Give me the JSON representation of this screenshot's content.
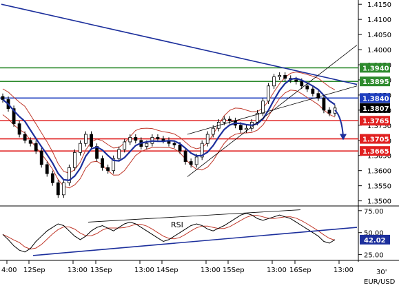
{
  "chart_data": [
    {
      "type": "candlestick",
      "instrument": "EUR/USD",
      "timeframe": "30'",
      "x_tick_labels": [
        "4:00",
        "12Sep",
        "13:00",
        "13Sep",
        "13:00",
        "14Sep",
        "13:00",
        "15Sep",
        "13:00",
        "16Sep",
        "13:00"
      ],
      "y_tick_labels": [
        "1.4150",
        "1.4100",
        "1.4050",
        "1.4000",
        "1.3950",
        "1.3900",
        "1.3850",
        "1.3800",
        "1.3750",
        "1.3700",
        "1.3650",
        "1.3600",
        "1.3550",
        "1.3500"
      ],
      "ylim": [
        1.349,
        1.4155
      ],
      "price_series_approx": [
        1.3835,
        1.3805,
        1.3755,
        1.372,
        1.37,
        1.369,
        1.3665,
        1.362,
        1.359,
        1.356,
        1.352,
        1.356,
        1.361,
        1.366,
        1.369,
        1.372,
        1.368,
        1.364,
        1.361,
        1.36,
        1.364,
        1.367,
        1.3695,
        1.371,
        1.37,
        1.368,
        1.369,
        1.371,
        1.3705,
        1.37,
        1.369,
        1.3685,
        1.3665,
        1.363,
        1.362,
        1.3645,
        1.369,
        1.372,
        1.374,
        1.376,
        1.377,
        1.3765,
        1.375,
        1.3735,
        1.374,
        1.376,
        1.379,
        1.383,
        1.388,
        1.391,
        1.3915,
        1.3905,
        1.39,
        1.3895,
        1.388,
        1.387,
        1.3855,
        1.384,
        1.38,
        1.379,
        1.3807
      ],
      "horizontal_levels": [
        {
          "label": "1.3940",
          "value": 1.394,
          "color": "#2e8b2e"
        },
        {
          "label": "1.3895",
          "value": 1.3895,
          "color": "#2e8b2e"
        },
        {
          "label": "1.3840",
          "value": 1.384,
          "color": "#1f3fbf"
        },
        {
          "label": "1.3807",
          "value": 1.3807,
          "color": "#000000"
        },
        {
          "label": "1.3765",
          "value": 1.3765,
          "color": "#e02020"
        },
        {
          "label": "1.3705",
          "value": 1.3705,
          "color": "#e02020"
        },
        {
          "label": "1.3665",
          "value": 1.3665,
          "color": "#e02020"
        }
      ],
      "moving_average_color": "#1c2f9c",
      "bollinger_color": "#c0392b",
      "trendline_color": "#1c2f9c",
      "channel_color": "#000000",
      "forecast_arrow_color": "#1c2f9c"
    },
    {
      "type": "line",
      "title": "RSI",
      "y_tick_labels": [
        "75.00",
        "50.00",
        "42.02",
        "25.00"
      ],
      "ylim": [
        20,
        78
      ],
      "current_value_label": "42.02",
      "series_approx": [
        48,
        42,
        35,
        30,
        28,
        32,
        40,
        46,
        52,
        56,
        60,
        58,
        52,
        46,
        42,
        46,
        52,
        56,
        58,
        55,
        52,
        56,
        60,
        62,
        60,
        56,
        52,
        48,
        44,
        40,
        42,
        46,
        50,
        54,
        58,
        60,
        58,
        54,
        52,
        55,
        58,
        62,
        66,
        70,
        72,
        70,
        66,
        64,
        66,
        68,
        70,
        68,
        66,
        62,
        58,
        54,
        50,
        46,
        40,
        38,
        42
      ],
      "rsi_line_color": "#1c2f9c",
      "rsi_signal_color": "#c0392b"
    }
  ]
}
